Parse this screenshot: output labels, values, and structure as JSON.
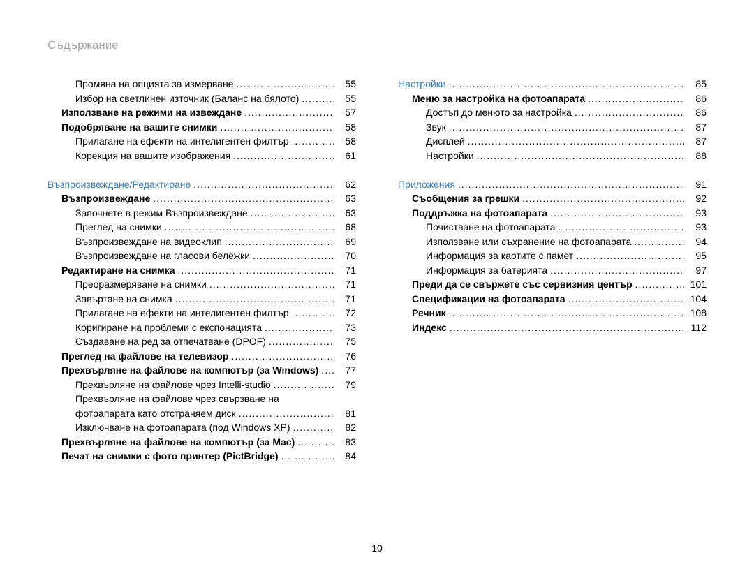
{
  "pageTitle": "Съдържание",
  "pageNumber": "10",
  "dots": "........................................................................................................................................................",
  "col1": [
    {
      "indent": 2,
      "style": "",
      "label": "Промяна на опцията за измерване",
      "page": "55"
    },
    {
      "indent": 2,
      "style": "",
      "label": "Избор на светлинен източник (Баланс на бялото)",
      "page": "55"
    },
    {
      "indent": 1,
      "style": "bold",
      "label": "Използване на режими на извеждане",
      "page": "57"
    },
    {
      "indent": 1,
      "style": "bold",
      "label": "Подобряване на вашите снимки",
      "page": "58"
    },
    {
      "indent": 2,
      "style": "",
      "label": "Прилагане на ефекти на интелигентен филтър",
      "page": "58"
    },
    {
      "indent": 2,
      "style": "",
      "label": "Корекция на вашите изображения",
      "page": "61"
    },
    {
      "indent": 0,
      "style": "spacer",
      "label": "",
      "page": ""
    },
    {
      "indent": 0,
      "style": "section",
      "label": "Възпроизвеждане/Редактиране",
      "page": "62"
    },
    {
      "indent": 1,
      "style": "bold",
      "label": "Възпроизвеждане",
      "page": "63"
    },
    {
      "indent": 2,
      "style": "",
      "label": "Започнете в режим Възпроизвеждане",
      "page": "63"
    },
    {
      "indent": 2,
      "style": "",
      "label": "Преглед на снимки",
      "page": "68"
    },
    {
      "indent": 2,
      "style": "",
      "label": "Възпроизвеждане на видеоклип",
      "page": "69"
    },
    {
      "indent": 2,
      "style": "",
      "label": "Възпроизвеждане на гласови бележки",
      "page": "70"
    },
    {
      "indent": 1,
      "style": "bold",
      "label": "Редактиране на снимка",
      "page": "71"
    },
    {
      "indent": 2,
      "style": "",
      "label": "Преоразмеряване на снимки",
      "page": "71"
    },
    {
      "indent": 2,
      "style": "",
      "label": "Завъртане на снимка",
      "page": "71"
    },
    {
      "indent": 2,
      "style": "",
      "label": "Прилагане на ефекти на интелигентен филтър",
      "page": "72"
    },
    {
      "indent": 2,
      "style": "",
      "label": "Коригиране на проблеми с експонацията",
      "page": "73"
    },
    {
      "indent": 2,
      "style": "",
      "label": "Създаване на ред за отпечатване (DPOF)",
      "page": "75"
    },
    {
      "indent": 1,
      "style": "bold",
      "label": "Преглед на файлове на телевизор",
      "page": "76"
    },
    {
      "indent": 1,
      "style": "bold",
      "label": "Прехвърляне на файлове на компютър (за Windows)",
      "page": "77"
    },
    {
      "indent": 2,
      "style": "",
      "label": "Прехвърляне на файлове чрез Intelli-studio",
      "page": "79"
    },
    {
      "indent": 2,
      "style": "wrap1",
      "label": "Прехвърляне на файлове чрез свързване на",
      "page": ""
    },
    {
      "indent": 2,
      "style": "wrap2",
      "label": "фотоапарата като отстраняем диск",
      "page": "81"
    },
    {
      "indent": 2,
      "style": "",
      "label": "Изключване на фотоапарата (под Windows XP)",
      "page": "82"
    },
    {
      "indent": 1,
      "style": "bold",
      "label": "Прехвърляне на файлове на компютър (за Mac)",
      "page": "83"
    },
    {
      "indent": 1,
      "style": "bold",
      "label": "Печат на снимки с фото принтер (PictBridge)",
      "page": "84"
    }
  ],
  "col2": [
    {
      "indent": 0,
      "style": "section",
      "label": "Настройки",
      "page": "85"
    },
    {
      "indent": 1,
      "style": "bold",
      "label": "Меню за настройка на фотоапарата",
      "page": "86"
    },
    {
      "indent": 2,
      "style": "",
      "label": "Достъп до менюто за настройка",
      "page": "86"
    },
    {
      "indent": 2,
      "style": "",
      "label": "Звук",
      "page": "87"
    },
    {
      "indent": 2,
      "style": "",
      "label": "Дисплей",
      "page": "87"
    },
    {
      "indent": 2,
      "style": "",
      "label": "Настройки",
      "page": "88"
    },
    {
      "indent": 0,
      "style": "spacer",
      "label": "",
      "page": ""
    },
    {
      "indent": 0,
      "style": "section",
      "label": "Приложения",
      "page": "91"
    },
    {
      "indent": 1,
      "style": "bold",
      "label": "Съобщения за грешки",
      "page": "92"
    },
    {
      "indent": 1,
      "style": "bold",
      "label": "Поддръжка на фотоапарата",
      "page": "93"
    },
    {
      "indent": 2,
      "style": "",
      "label": "Почистване на фотоапарата",
      "page": "93"
    },
    {
      "indent": 2,
      "style": "",
      "label": "Използване или съхранение на фотоапарата",
      "page": "94"
    },
    {
      "indent": 2,
      "style": "",
      "label": "Информация за картите с памет",
      "page": "95"
    },
    {
      "indent": 2,
      "style": "",
      "label": "Информация за батерията",
      "page": "97"
    },
    {
      "indent": 1,
      "style": "bold",
      "label": "Преди да се свържете със сервизния център",
      "page": "101"
    },
    {
      "indent": 1,
      "style": "bold",
      "label": "Спецификации на фотоапарата",
      "page": "104"
    },
    {
      "indent": 1,
      "style": "bold",
      "label": "Речник",
      "page": "108"
    },
    {
      "indent": 1,
      "style": "bold",
      "label": "Индекс",
      "page": "112"
    }
  ]
}
